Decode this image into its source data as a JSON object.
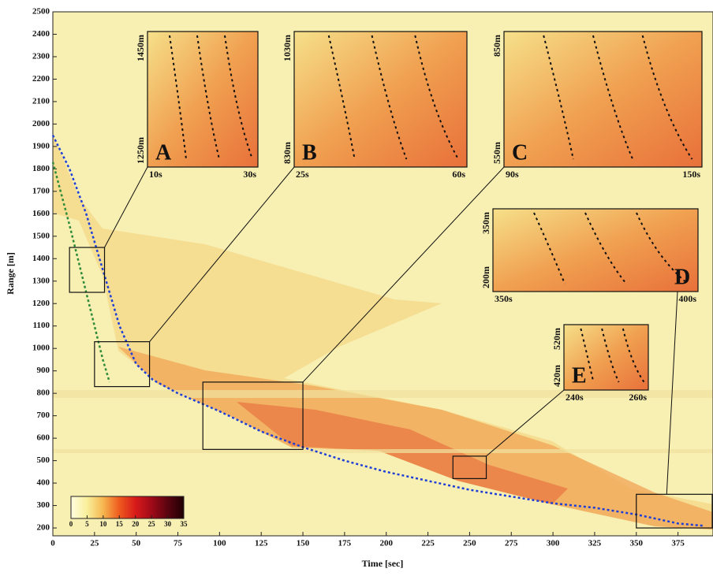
{
  "chart_data": {
    "type": "line",
    "xlabel": "Time [sec]",
    "ylabel": "Range [m]",
    "xlim": [
      0,
      396
    ],
    "ylim": [
      165,
      2500
    ],
    "xticks": [
      0,
      25,
      50,
      75,
      100,
      125,
      150,
      175,
      200,
      225,
      250,
      275,
      300,
      325,
      350,
      375
    ],
    "yticks": [
      200,
      300,
      400,
      500,
      600,
      700,
      800,
      900,
      1000,
      1100,
      1200,
      1300,
      1400,
      1500,
      1600,
      1700,
      1800,
      1900,
      2000,
      2100,
      2200,
      2300,
      2400,
      2500
    ],
    "series": [
      {
        "color": "#1f3fd6",
        "dash": true,
        "x": [
          0,
          10,
          20,
          30,
          40,
          50,
          60,
          75,
          100,
          125,
          150,
          175,
          200,
          225,
          250,
          275,
          300,
          325,
          350,
          375,
          390
        ],
        "values": [
          1950,
          1800,
          1600,
          1350,
          1100,
          930,
          860,
          800,
          720,
          630,
          560,
          500,
          450,
          410,
          370,
          340,
          310,
          290,
          260,
          220,
          210
        ]
      },
      {
        "color": "#2e8b3a",
        "dash": true,
        "x": [
          0,
          10,
          20,
          30,
          34
        ],
        "values": [
          1830,
          1550,
          1250,
          950,
          850
        ]
      }
    ],
    "colorbar": {
      "ticks": [
        0,
        5,
        10,
        15,
        20,
        25,
        30,
        35
      ],
      "colors": [
        "#fffde0",
        "#f9ef9a",
        "#f6b650",
        "#ee5a1e",
        "#d81a1a",
        "#a00a18",
        "#5a0410",
        "#200005"
      ]
    },
    "insets": [
      {
        "label": "A",
        "xlim": [
          10,
          31
        ],
        "ylim": [
          1250,
          1450
        ],
        "x_labels": [
          "10s",
          "30s"
        ],
        "y_labels": [
          "1250m",
          "1450m"
        ]
      },
      {
        "label": "B",
        "xlim": [
          25,
          58
        ],
        "ylim": [
          830,
          1030
        ],
        "x_labels": [
          "25s",
          "60s"
        ],
        "y_labels": [
          "830m",
          "1030m"
        ]
      },
      {
        "label": "C",
        "xlim": [
          90,
          150
        ],
        "ylim": [
          550,
          850
        ],
        "x_labels": [
          "90s",
          "150s"
        ],
        "y_labels": [
          "550m",
          "850m"
        ]
      },
      {
        "label": "D",
        "xlim": [
          350,
          400
        ],
        "ylim": [
          200,
          350
        ],
        "x_labels": [
          "350s",
          "400s"
        ],
        "y_labels": [
          "200m",
          "350m"
        ]
      },
      {
        "label": "E",
        "xlim": [
          240,
          260
        ],
        "ylim": [
          420,
          520
        ],
        "x_labels": [
          "240s",
          "260s"
        ],
        "y_labels": [
          "420m",
          "520m"
        ]
      }
    ]
  }
}
